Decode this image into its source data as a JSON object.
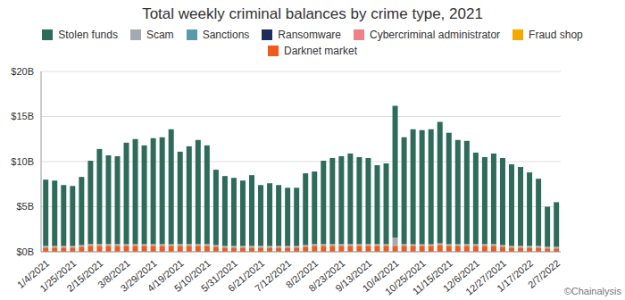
{
  "chart_data": {
    "type": "bar",
    "title": "Total weekly criminal balances by crime type, 2021",
    "annotation": "©Chainalysis",
    "stacked": true,
    "grid": true,
    "legend": "top",
    "categories": [
      "1/4/2021",
      null,
      null,
      "1/25/2021",
      null,
      null,
      "2/15/2021",
      null,
      null,
      "3/8/2021",
      null,
      null,
      "3/29/2021",
      null,
      null,
      "4/19/2021",
      null,
      null,
      "5/10/2021",
      null,
      null,
      "5/31/2021",
      null,
      null,
      "6/21/2021",
      null,
      null,
      "7/12/2021",
      null,
      null,
      "8/2/2021",
      null,
      null,
      "8/23/2021",
      null,
      null,
      "9/13/2021",
      null,
      null,
      "10/4/2021",
      null,
      null,
      "10/25/2021",
      null,
      null,
      "11/15/2021",
      null,
      null,
      "12/6/2021",
      null,
      null,
      "12/27/2021",
      null,
      null,
      "1/17/2022",
      null,
      null,
      "2/7/2022"
    ],
    "ylim": [
      0,
      20
    ],
    "yticks": [
      {
        "value": 0,
        "label": "$0B"
      },
      {
        "value": 5,
        "label": "$5B"
      },
      {
        "value": 10,
        "label": "$10B"
      },
      {
        "value": 15,
        "label": "$15B"
      },
      {
        "value": 20,
        "label": "$20B"
      }
    ],
    "series": [
      {
        "name": "Stolen funds",
        "color": "#2e6b5a",
        "values": [
          7.35,
          7.25,
          6.75,
          6.65,
          7.55,
          9.25,
          10.55,
          9.85,
          9.75,
          11.25,
          11.65,
          10.95,
          11.75,
          11.85,
          12.75,
          10.25,
          10.85,
          11.55,
          10.95,
          8.35,
          7.75,
          7.55,
          7.25,
          7.85,
          6.75,
          6.95,
          6.75,
          6.45,
          6.45,
          7.95,
          8.05,
          9.25,
          9.55,
          9.75,
          10.05,
          9.65,
          9.55,
          8.75,
          8.95,
          14.65,
          11.85,
          12.75,
          12.65,
          12.75,
          13.45,
          12.35,
          11.55,
          11.45,
          10.15,
          9.65,
          10.05,
          9.65,
          9.05,
          8.75,
          8.15,
          7.45,
          4.45,
          4.95
        ]
      },
      {
        "name": "Scam",
        "color": "#a3aab3",
        "values": [
          0.1,
          0.1,
          0.1,
          0.1,
          0.1,
          0.1,
          0.1,
          0.1,
          0.1,
          0.1,
          0.1,
          0.1,
          0.1,
          0.1,
          0.1,
          0.1,
          0.1,
          0.1,
          0.1,
          0.1,
          0.1,
          0.1,
          0.1,
          0.1,
          0.1,
          0.1,
          0.1,
          0.1,
          0.1,
          0.1,
          0.1,
          0.1,
          0.1,
          0.1,
          0.1,
          0.1,
          0.1,
          0.1,
          0.1,
          0.8,
          0.1,
          0.1,
          0.1,
          0.1,
          0.1,
          0.1,
          0.1,
          0.1,
          0.1,
          0.1,
          0.1,
          0.1,
          0.1,
          0.1,
          0.1,
          0.1,
          0.1,
          0.1
        ]
      },
      {
        "name": "Sanctions",
        "color": "#5b9aa9",
        "values": [
          0.05,
          0.05,
          0.05,
          0.05,
          0.05,
          0.05,
          0.05,
          0.05,
          0.05,
          0.05,
          0.05,
          0.05,
          0.05,
          0.05,
          0.05,
          0.05,
          0.05,
          0.05,
          0.05,
          0.05,
          0.05,
          0.05,
          0.05,
          0.05,
          0.05,
          0.05,
          0.05,
          0.05,
          0.05,
          0.05,
          0.05,
          0.05,
          0.05,
          0.05,
          0.05,
          0.05,
          0.05,
          0.05,
          0.05,
          0.05,
          0.05,
          0.05,
          0.05,
          0.05,
          0.05,
          0.05,
          0.05,
          0.05,
          0.05,
          0.05,
          0.05,
          0.05,
          0.05,
          0.05,
          0.05,
          0.05,
          0.05,
          0.05
        ]
      },
      {
        "name": "Ransomware",
        "color": "#1f2d5c",
        "values": [
          0.03,
          0.03,
          0.03,
          0.03,
          0.03,
          0.03,
          0.03,
          0.03,
          0.03,
          0.03,
          0.03,
          0.03,
          0.03,
          0.03,
          0.03,
          0.03,
          0.03,
          0.03,
          0.03,
          0.03,
          0.03,
          0.03,
          0.03,
          0.03,
          0.03,
          0.03,
          0.03,
          0.03,
          0.03,
          0.03,
          0.03,
          0.03,
          0.03,
          0.03,
          0.03,
          0.03,
          0.03,
          0.03,
          0.03,
          0.03,
          0.03,
          0.03,
          0.03,
          0.03,
          0.03,
          0.03,
          0.03,
          0.03,
          0.03,
          0.03,
          0.03,
          0.03,
          0.03,
          0.03,
          0.03,
          0.03,
          0.03,
          0.03
        ]
      },
      {
        "name": "Cybercriminal administrator",
        "color": "#ee8189",
        "values": [
          0.02,
          0.02,
          0.02,
          0.02,
          0.02,
          0.02,
          0.02,
          0.02,
          0.02,
          0.02,
          0.02,
          0.02,
          0.02,
          0.02,
          0.02,
          0.02,
          0.02,
          0.02,
          0.02,
          0.02,
          0.02,
          0.02,
          0.02,
          0.02,
          0.02,
          0.02,
          0.02,
          0.02,
          0.02,
          0.02,
          0.02,
          0.02,
          0.02,
          0.02,
          0.02,
          0.02,
          0.02,
          0.02,
          0.02,
          0.02,
          0.02,
          0.02,
          0.02,
          0.02,
          0.02,
          0.02,
          0.02,
          0.02,
          0.02,
          0.02,
          0.02,
          0.02,
          0.02,
          0.02,
          0.02,
          0.02,
          0.02,
          0.02
        ]
      },
      {
        "name": "Fraud shop",
        "color": "#f5a800",
        "values": [
          0.05,
          0.05,
          0.05,
          0.05,
          0.05,
          0.05,
          0.05,
          0.05,
          0.05,
          0.05,
          0.05,
          0.05,
          0.05,
          0.05,
          0.05,
          0.05,
          0.05,
          0.05,
          0.05,
          0.05,
          0.05,
          0.05,
          0.05,
          0.05,
          0.05,
          0.05,
          0.05,
          0.05,
          0.05,
          0.05,
          0.05,
          0.05,
          0.05,
          0.05,
          0.05,
          0.05,
          0.05,
          0.05,
          0.05,
          0.05,
          0.05,
          0.05,
          0.05,
          0.05,
          0.05,
          0.05,
          0.05,
          0.05,
          0.05,
          0.05,
          0.05,
          0.05,
          0.05,
          0.05,
          0.05,
          0.05,
          0.05,
          0.05
        ]
      },
      {
        "name": "Darknet market",
        "color": "#f05a1c",
        "values": [
          0.4,
          0.4,
          0.4,
          0.4,
          0.5,
          0.6,
          0.6,
          0.6,
          0.6,
          0.6,
          0.6,
          0.6,
          0.6,
          0.6,
          0.6,
          0.6,
          0.6,
          0.6,
          0.6,
          0.5,
          0.4,
          0.4,
          0.4,
          0.4,
          0.4,
          0.4,
          0.4,
          0.4,
          0.4,
          0.5,
          0.6,
          0.6,
          0.6,
          0.6,
          0.6,
          0.6,
          0.6,
          0.6,
          0.6,
          0.6,
          0.6,
          0.6,
          0.6,
          0.6,
          0.7,
          0.6,
          0.6,
          0.6,
          0.6,
          0.6,
          0.6,
          0.5,
          0.4,
          0.4,
          0.4,
          0.4,
          0.3,
          0.3
        ]
      }
    ]
  }
}
